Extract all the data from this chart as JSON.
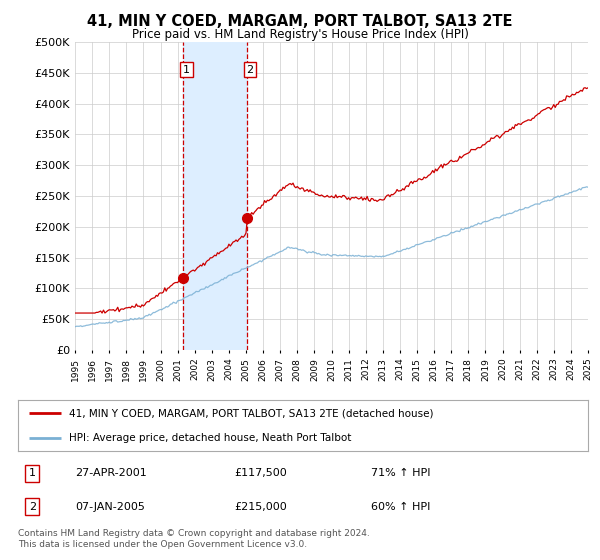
{
  "title": "41, MIN Y COED, MARGAM, PORT TALBOT, SA13 2TE",
  "subtitle": "Price paid vs. HM Land Registry's House Price Index (HPI)",
  "legend_line1": "41, MIN Y COED, MARGAM, PORT TALBOT, SA13 2TE (detached house)",
  "legend_line2": "HPI: Average price, detached house, Neath Port Talbot",
  "footnote": "Contains HM Land Registry data © Crown copyright and database right 2024.\nThis data is licensed under the Open Government Licence v3.0.",
  "sale1_date": "27-APR-2001",
  "sale1_price": "£117,500",
  "sale1_hpi": "71% ↑ HPI",
  "sale2_date": "07-JAN-2005",
  "sale2_price": "£215,000",
  "sale2_hpi": "60% ↑ HPI",
  "sale1_x": 2001.32,
  "sale2_x": 2005.03,
  "sale1_y": 117500,
  "sale2_y": 215000,
  "xmin": 1995,
  "xmax": 2025,
  "ymin": 0,
  "ymax": 500000,
  "yticks": [
    0,
    50000,
    100000,
    150000,
    200000,
    250000,
    300000,
    350000,
    400000,
    450000,
    500000
  ],
  "red_color": "#cc0000",
  "blue_color": "#7ab0d4",
  "shade_color": "#ddeeff",
  "grid_color": "#cccccc",
  "bg": "#ffffff"
}
